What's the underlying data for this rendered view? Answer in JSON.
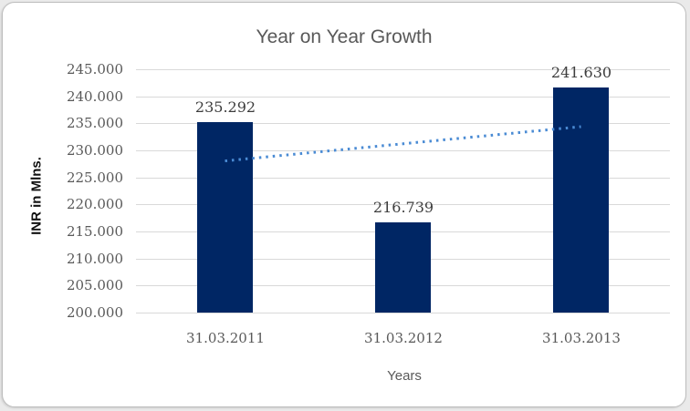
{
  "chart_data": {
    "type": "bar",
    "title": "Year on Year Growth",
    "xlabel": "Years",
    "ylabel": "INR in Mlns.",
    "categories": [
      "31.03.2011",
      "31.03.2012",
      "31.03.2013"
    ],
    "values": [
      235.292,
      216.739,
      241.63
    ],
    "data_labels": [
      "235.292",
      "216.739",
      "241.630"
    ],
    "ylim": [
      200,
      245
    ],
    "ytick_step": 5,
    "ytick_labels": [
      "200.000",
      "205.000",
      "210.000",
      "215.000",
      "220.000",
      "225.000",
      "230.000",
      "235.000",
      "240.000",
      "245.000"
    ],
    "grid": true,
    "legend": "none",
    "trendline": {
      "kind": "linear",
      "style": "dotted",
      "color": "#4a8bd4"
    },
    "colors": {
      "bar_fill": "#002664",
      "gridline": "#d9d9d9",
      "title_text": "#595959",
      "axis_tick_text": "#595959",
      "data_label_text": "#3d3d3d",
      "axis_title_text": "#111111",
      "frame_border": "#bdbdbd"
    }
  }
}
